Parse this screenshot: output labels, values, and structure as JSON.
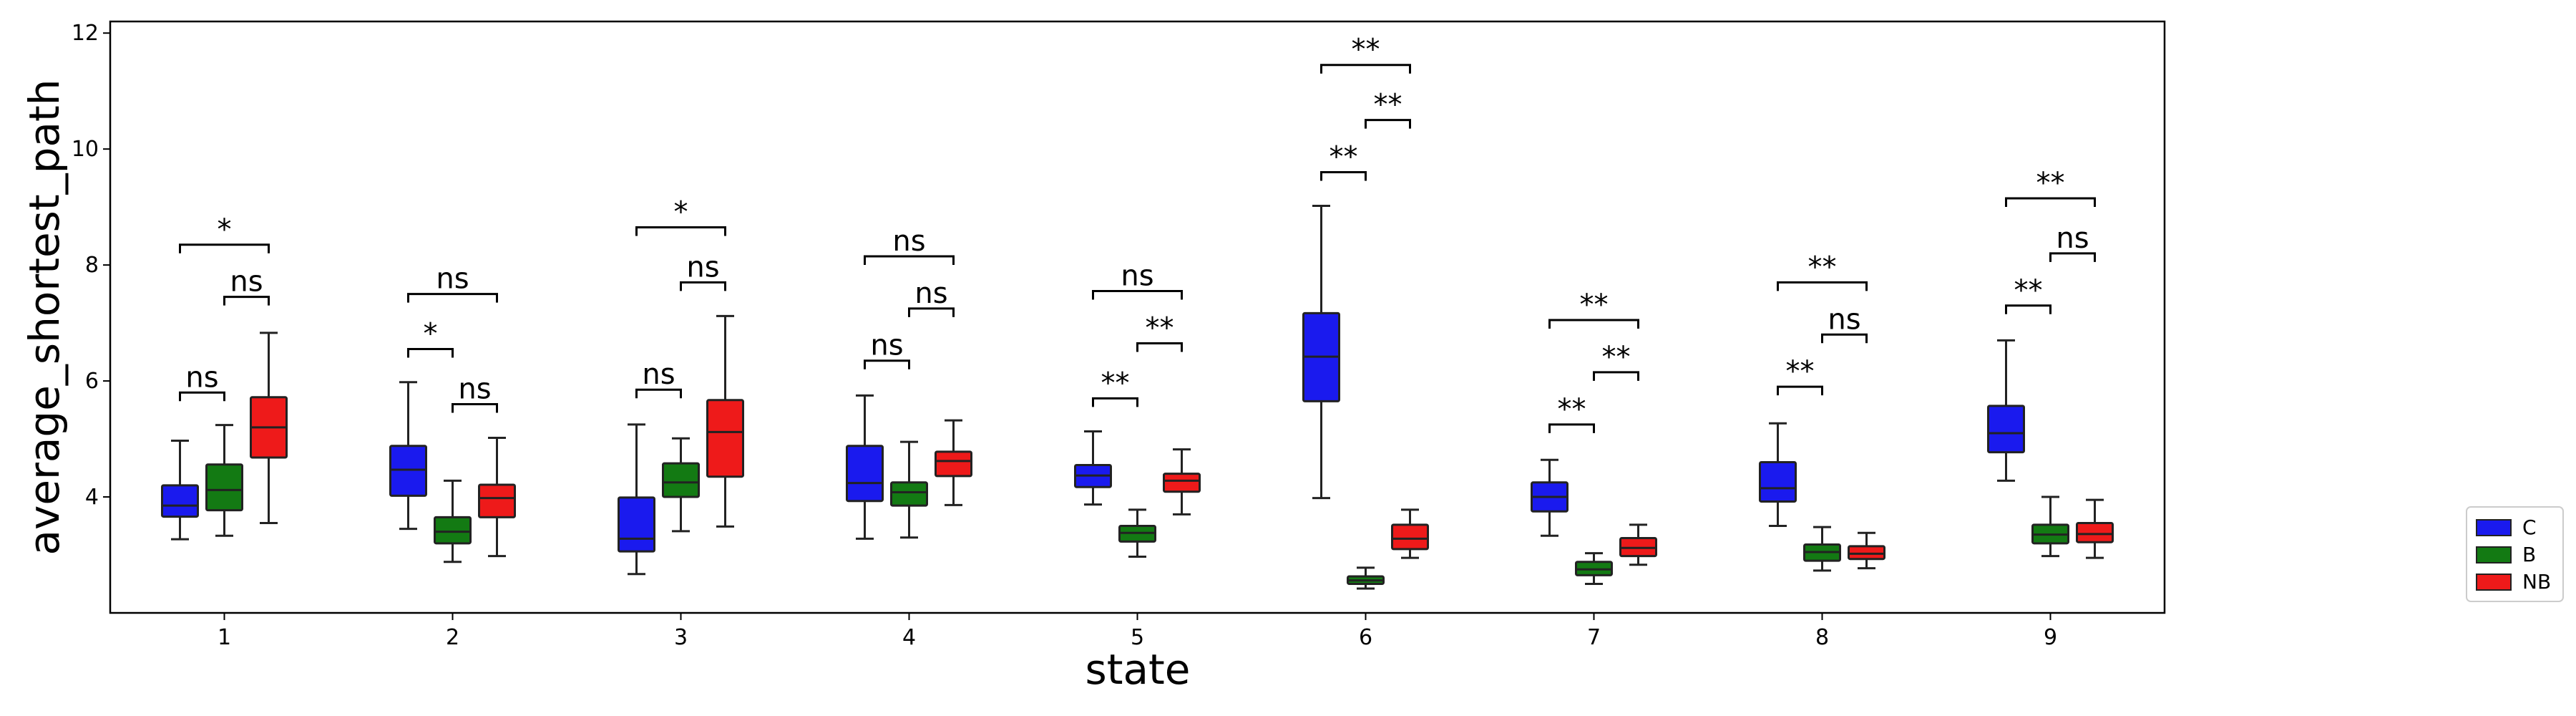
{
  "chart_data": {
    "type": "boxplot",
    "xlabel": "state",
    "ylabel": "average_shortest_path",
    "ylim": [
      2.0,
      12.2
    ],
    "yticks": [
      4,
      6,
      8,
      10,
      12
    ],
    "categories": [
      "1",
      "2",
      "3",
      "4",
      "5",
      "6",
      "7",
      "8",
      "9"
    ],
    "grid": false,
    "legend_position": "outside-right-bottom",
    "series": [
      {
        "name": "C",
        "color": "#1a1aee",
        "boxes": [
          {
            "whislo": 3.27,
            "q1": 3.66,
            "med": 3.85,
            "q3": 4.2,
            "whishi": 4.97
          },
          {
            "whislo": 3.45,
            "q1": 4.02,
            "med": 4.47,
            "q3": 4.88,
            "whishi": 5.98
          },
          {
            "whislo": 2.67,
            "q1": 3.06,
            "med": 3.28,
            "q3": 3.99,
            "whishi": 5.25
          },
          {
            "whislo": 3.28,
            "q1": 3.93,
            "med": 4.24,
            "q3": 4.88,
            "whishi": 5.75
          },
          {
            "whislo": 3.87,
            "q1": 4.17,
            "med": 4.37,
            "q3": 4.55,
            "whishi": 5.13
          },
          {
            "whislo": 3.98,
            "q1": 5.65,
            "med": 6.42,
            "q3": 7.17,
            "whishi": 9.02
          },
          {
            "whislo": 3.33,
            "q1": 3.75,
            "med": 4.0,
            "q3": 4.25,
            "whishi": 4.64
          },
          {
            "whislo": 3.5,
            "q1": 3.92,
            "med": 4.15,
            "q3": 4.6,
            "whishi": 5.27
          },
          {
            "whislo": 4.28,
            "q1": 4.77,
            "med": 5.1,
            "q3": 5.57,
            "whishi": 6.7
          }
        ]
      },
      {
        "name": "B",
        "color": "#137a13",
        "boxes": [
          {
            "whislo": 3.33,
            "q1": 3.77,
            "med": 4.12,
            "q3": 4.56,
            "whishi": 5.24
          },
          {
            "whislo": 2.88,
            "q1": 3.2,
            "med": 3.4,
            "q3": 3.65,
            "whishi": 4.28
          },
          {
            "whislo": 3.41,
            "q1": 4.0,
            "med": 4.25,
            "q3": 4.58,
            "whishi": 5.01
          },
          {
            "whislo": 3.3,
            "q1": 3.85,
            "med": 4.08,
            "q3": 4.25,
            "whishi": 4.95
          },
          {
            "whislo": 2.97,
            "q1": 3.23,
            "med": 3.38,
            "q3": 3.5,
            "whishi": 3.78
          },
          {
            "whislo": 2.42,
            "q1": 2.5,
            "med": 2.56,
            "q3": 2.63,
            "whishi": 2.78
          },
          {
            "whislo": 2.5,
            "q1": 2.65,
            "med": 2.75,
            "q3": 2.88,
            "whishi": 3.03
          },
          {
            "whislo": 2.73,
            "q1": 2.9,
            "med": 3.05,
            "q3": 3.18,
            "whishi": 3.48
          },
          {
            "whislo": 2.98,
            "q1": 3.2,
            "med": 3.35,
            "q3": 3.52,
            "whishi": 4.0
          }
        ]
      },
      {
        "name": "NB",
        "color": "#ee1a1a",
        "boxes": [
          {
            "whislo": 3.55,
            "q1": 4.68,
            "med": 5.2,
            "q3": 5.72,
            "whishi": 6.83
          },
          {
            "whislo": 2.98,
            "q1": 3.65,
            "med": 3.98,
            "q3": 4.21,
            "whishi": 5.02
          },
          {
            "whislo": 3.49,
            "q1": 4.35,
            "med": 5.12,
            "q3": 5.67,
            "whishi": 7.12
          },
          {
            "whislo": 3.86,
            "q1": 4.36,
            "med": 4.62,
            "q3": 4.78,
            "whishi": 5.32
          },
          {
            "whislo": 3.7,
            "q1": 4.09,
            "med": 4.28,
            "q3": 4.4,
            "whishi": 4.82
          },
          {
            "whislo": 2.95,
            "q1": 3.1,
            "med": 3.28,
            "q3": 3.52,
            "whishi": 3.78
          },
          {
            "whislo": 2.83,
            "q1": 2.98,
            "med": 3.12,
            "q3": 3.29,
            "whishi": 3.52
          },
          {
            "whislo": 2.77,
            "q1": 2.93,
            "med": 3.02,
            "q3": 3.15,
            "whishi": 3.38
          },
          {
            "whislo": 2.95,
            "q1": 3.22,
            "med": 3.36,
            "q3": 3.55,
            "whishi": 3.95
          }
        ]
      }
    ],
    "annotations": [
      {
        "group": 1,
        "from": "C",
        "to": "B",
        "label": "ns",
        "y": 5.8
      },
      {
        "group": 1,
        "from": "B",
        "to": "NB",
        "label": "ns",
        "y": 7.45
      },
      {
        "group": 1,
        "from": "C",
        "to": "NB",
        "label": "*",
        "y": 8.35
      },
      {
        "group": 2,
        "from": "C",
        "to": "B",
        "label": "*",
        "y": 6.55
      },
      {
        "group": 2,
        "from": "B",
        "to": "NB",
        "label": "ns",
        "y": 5.6
      },
      {
        "group": 2,
        "from": "C",
        "to": "NB",
        "label": "ns",
        "y": 7.5
      },
      {
        "group": 3,
        "from": "C",
        "to": "B",
        "label": "ns",
        "y": 5.85
      },
      {
        "group": 3,
        "from": "B",
        "to": "NB",
        "label": "ns",
        "y": 7.7
      },
      {
        "group": 3,
        "from": "C",
        "to": "NB",
        "label": "*",
        "y": 8.65
      },
      {
        "group": 4,
        "from": "C",
        "to": "B",
        "label": "ns",
        "y": 6.35
      },
      {
        "group": 4,
        "from": "B",
        "to": "NB",
        "label": "ns",
        "y": 7.25
      },
      {
        "group": 4,
        "from": "C",
        "to": "NB",
        "label": "ns",
        "y": 8.15
      },
      {
        "group": 5,
        "from": "C",
        "to": "B",
        "label": "**",
        "y": 5.7
      },
      {
        "group": 5,
        "from": "B",
        "to": "NB",
        "label": "**",
        "y": 6.65
      },
      {
        "group": 5,
        "from": "C",
        "to": "NB",
        "label": "ns",
        "y": 7.55
      },
      {
        "group": 6,
        "from": "C",
        "to": "B",
        "label": "**",
        "y": 9.6
      },
      {
        "group": 6,
        "from": "B",
        "to": "NB",
        "label": "**",
        "y": 10.5
      },
      {
        "group": 6,
        "from": "C",
        "to": "NB",
        "label": "**",
        "y": 11.45
      },
      {
        "group": 7,
        "from": "C",
        "to": "B",
        "label": "**",
        "y": 5.25
      },
      {
        "group": 7,
        "from": "B",
        "to": "NB",
        "label": "**",
        "y": 6.15
      },
      {
        "group": 7,
        "from": "C",
        "to": "NB",
        "label": "**",
        "y": 7.05
      },
      {
        "group": 8,
        "from": "C",
        "to": "B",
        "label": "**",
        "y": 5.9
      },
      {
        "group": 8,
        "from": "B",
        "to": "NB",
        "label": "ns",
        "y": 6.8
      },
      {
        "group": 8,
        "from": "C",
        "to": "NB",
        "label": "**",
        "y": 7.7
      },
      {
        "group": 9,
        "from": "C",
        "to": "B",
        "label": "**",
        "y": 7.3
      },
      {
        "group": 9,
        "from": "B",
        "to": "NB",
        "label": "ns",
        "y": 8.2
      },
      {
        "group": 9,
        "from": "C",
        "to": "NB",
        "label": "**",
        "y": 9.15
      }
    ]
  }
}
